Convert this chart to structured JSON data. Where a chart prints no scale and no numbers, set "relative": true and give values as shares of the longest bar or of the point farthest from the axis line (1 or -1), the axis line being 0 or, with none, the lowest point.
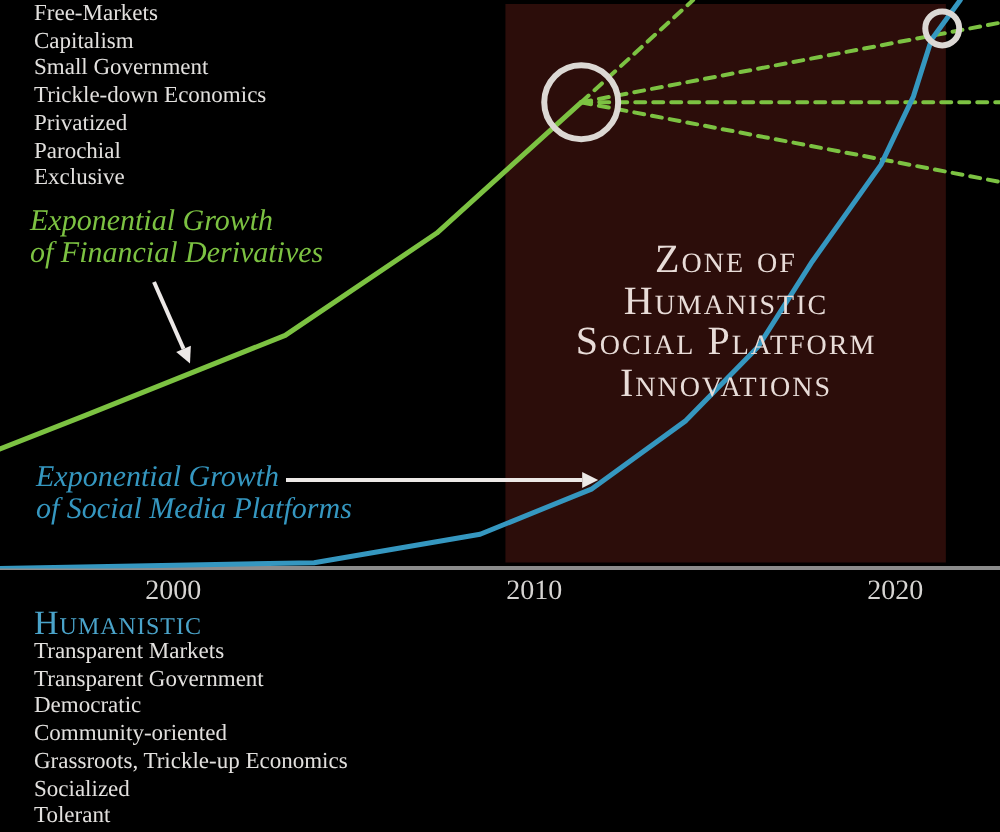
{
  "chart_data": {
    "type": "line",
    "relative": true,
    "marker": "none",
    "xlim": [
      1995.2,
      2022.9
    ],
    "xticks": [
      2000,
      2010,
      2020
    ],
    "series": [
      {
        "name": "Exponential Growth\nof Financial Derivatives",
        "color": "#7cc242",
        "x": [
          1995.2,
          1997.6,
          2003.1,
          2007.3,
          2011.3
        ],
        "values": [
          0.21,
          0.27,
          0.41,
          0.59,
          0.82
        ]
      },
      {
        "name": "Exponential Growth\nof Social Media Platforms",
        "color": "#3597c0",
        "x": [
          1995.2,
          2003.9,
          2008.5,
          2011.6,
          2014.2,
          2016.2,
          2017.7,
          2019.6,
          2020.5,
          2021.0,
          2021.8
        ],
        "values": [
          0.0,
          0.01,
          0.06,
          0.14,
          0.26,
          0.39,
          0.54,
          0.71,
          0.83,
          0.93,
          1.0
        ]
      },
      {
        "color": "#7cc242",
        "line_style": "dashed",
        "x": [
          2011.3,
          2014.4
        ],
        "values": [
          0.82,
          1.0
        ]
      },
      {
        "color": "#7cc242",
        "line_style": "dashed",
        "x": [
          2011.3,
          2022.9
        ],
        "values": [
          0.82,
          0.96
        ]
      },
      {
        "color": "#7cc242",
        "line_style": "dashed",
        "x": [
          2011.3,
          2022.9
        ],
        "values": [
          0.82,
          0.82
        ]
      },
      {
        "color": "#7cc242",
        "line_style": "dashed",
        "x": [
          2011.3,
          2022.9
        ],
        "values": [
          0.82,
          0.68
        ]
      },
      {
        "type": "bubble",
        "marker": "circle",
        "color": "#dcd8d4",
        "x": [
          2011.3,
          2021.3
        ],
        "values": [
          0.82,
          0.95
        ],
        "sizes": [
          1,
          0.21
        ]
      }
    ],
    "bands": [
      {
        "axis": "x",
        "from": 2009.2,
        "to": 2021.4,
        "label": "Zone of\nHumanistic\nSocial Platform\nInnovations",
        "color": "#2c0d0a"
      }
    ],
    "annotations": [
      "Free-Markets\nCapitalism\nSmall Government\nTrickle-down Economics\nPrivatized\nParochial\nExclusive",
      "Humanistic",
      "Transparent Markets\nTransparent Government\nDemocratic\nCommunity-oriented\nGrassroots, Trickle-up Economics\nSocialized\nTolerant"
    ]
  }
}
